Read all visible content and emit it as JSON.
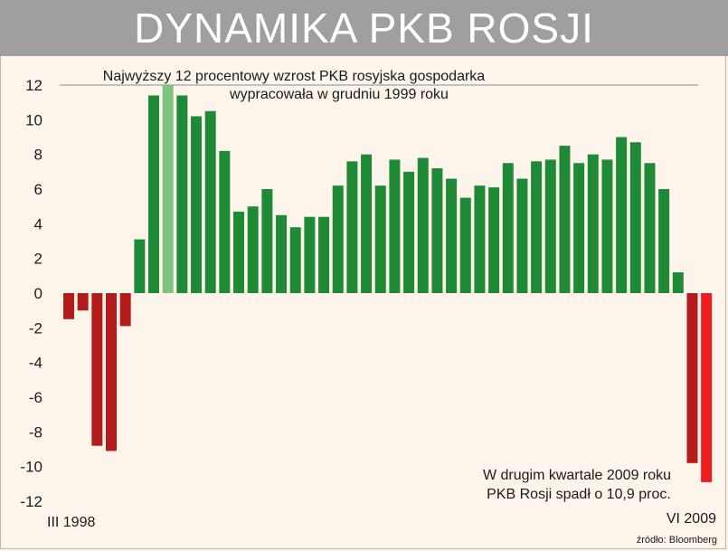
{
  "chart_data": {
    "type": "bar",
    "title": "DYNAMIKA PKB ROSJI",
    "xlabel": "",
    "ylabel": "",
    "ylim": [
      -12,
      12
    ],
    "yticks": [
      12,
      10,
      8,
      6,
      4,
      2,
      0,
      -2,
      -4,
      -6,
      -8,
      -10,
      -12
    ],
    "x_start_label": "III 1998",
    "x_end_label": "VI 2009",
    "values": [
      -1.5,
      -1.0,
      -8.8,
      -9.1,
      -1.9,
      3.1,
      11.4,
      12.0,
      11.4,
      10.2,
      10.5,
      8.2,
      4.7,
      5.0,
      6.0,
      4.5,
      3.8,
      4.4,
      4.4,
      6.2,
      7.6,
      8.0,
      6.2,
      7.7,
      7.0,
      7.8,
      7.2,
      6.6,
      5.5,
      6.2,
      6.1,
      7.5,
      6.6,
      7.6,
      7.7,
      8.5,
      7.5,
      8.0,
      7.7,
      9.0,
      8.7,
      7.5,
      6.0,
      1.2,
      -9.8,
      -10.9
    ],
    "highlight_index": 7,
    "colors": {
      "positive": "#1f8a35",
      "highlight": "#7ec47f",
      "negative": "#b31b1b",
      "last_negative": "#ee1c1c"
    },
    "annotations": [
      {
        "lines": [
          "Najwyższy 12 procentowy wzrost PKB rosyjska gospodarka",
          "wypracowała w grudniu 1999 roku"
        ]
      },
      {
        "lines": [
          "W drugim kwartale 2009 roku",
          "PKB Rosji spadł o 10,9 proc."
        ]
      }
    ],
    "source": "źródło: Bloomberg"
  }
}
